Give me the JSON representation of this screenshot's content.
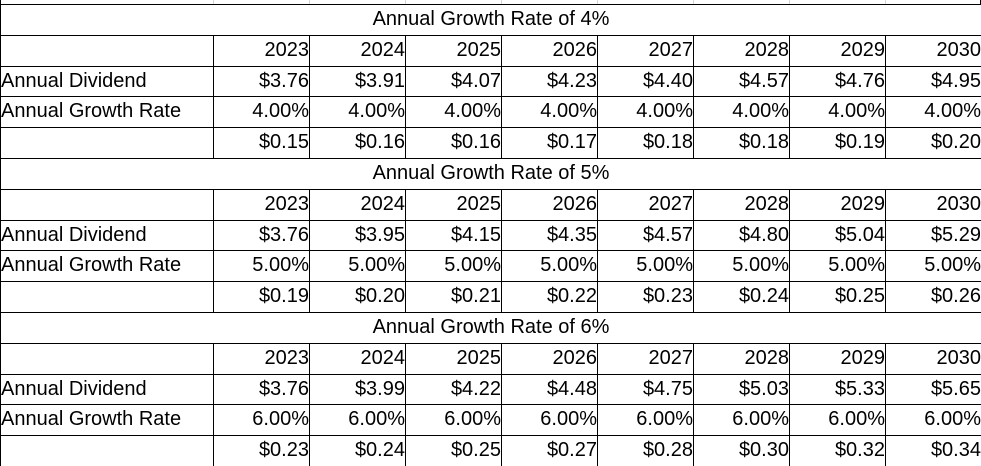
{
  "sheet": {
    "tables": [
      {
        "title": "Annual Growth Rate of 4%",
        "years": [
          "2023",
          "2024",
          "2025",
          "2026",
          "2027",
          "2028",
          "2029",
          "2030"
        ],
        "rows": [
          {
            "label": "Annual Dividend",
            "values": [
              "$3.76",
              "$3.91",
              "$4.07",
              "$4.23",
              "$4.40",
              "$4.57",
              "$4.76",
              "$4.95"
            ]
          },
          {
            "label": "Annual Growth Rate",
            "values": [
              "4.00%",
              "4.00%",
              "4.00%",
              "4.00%",
              "4.00%",
              "4.00%",
              "4.00%",
              "4.00%"
            ]
          },
          {
            "label": "",
            "values": [
              "$0.15",
              "$0.16",
              "$0.16",
              "$0.17",
              "$0.18",
              "$0.18",
              "$0.19",
              "$0.20"
            ]
          }
        ]
      },
      {
        "title": "Annual Growth Rate of 5%",
        "years": [
          "2023",
          "2024",
          "2025",
          "2026",
          "2027",
          "2028",
          "2029",
          "2030"
        ],
        "rows": [
          {
            "label": "Annual Dividend",
            "values": [
              "$3.76",
              "$3.95",
              "$4.15",
              "$4.35",
              "$4.57",
              "$4.80",
              "$5.04",
              "$5.29"
            ]
          },
          {
            "label": "Annual Growth Rate",
            "values": [
              "5.00%",
              "5.00%",
              "5.00%",
              "5.00%",
              "5.00%",
              "5.00%",
              "5.00%",
              "5.00%"
            ]
          },
          {
            "label": "",
            "values": [
              "$0.19",
              "$0.20",
              "$0.21",
              "$0.22",
              "$0.23",
              "$0.24",
              "$0.25",
              "$0.26"
            ]
          }
        ]
      },
      {
        "title": "Annual Growth Rate of 6%",
        "years": [
          "2023",
          "2024",
          "2025",
          "2026",
          "2027",
          "2028",
          "2029",
          "2030"
        ],
        "rows": [
          {
            "label": "Annual Dividend",
            "values": [
              "$3.76",
              "$3.99",
              "$4.22",
              "$4.48",
              "$4.75",
              "$5.03",
              "$5.33",
              "$5.65"
            ]
          },
          {
            "label": "Annual Growth Rate",
            "values": [
              "6.00%",
              "6.00%",
              "6.00%",
              "6.00%",
              "6.00%",
              "6.00%",
              "6.00%",
              "6.00%"
            ]
          },
          {
            "label": "",
            "values": [
              "$0.23",
              "$0.24",
              "$0.25",
              "$0.27",
              "$0.28",
              "$0.30",
              "$0.32",
              "$0.34"
            ]
          }
        ]
      }
    ],
    "grid_color": "#d6d6d6",
    "border_color": "#000000"
  }
}
